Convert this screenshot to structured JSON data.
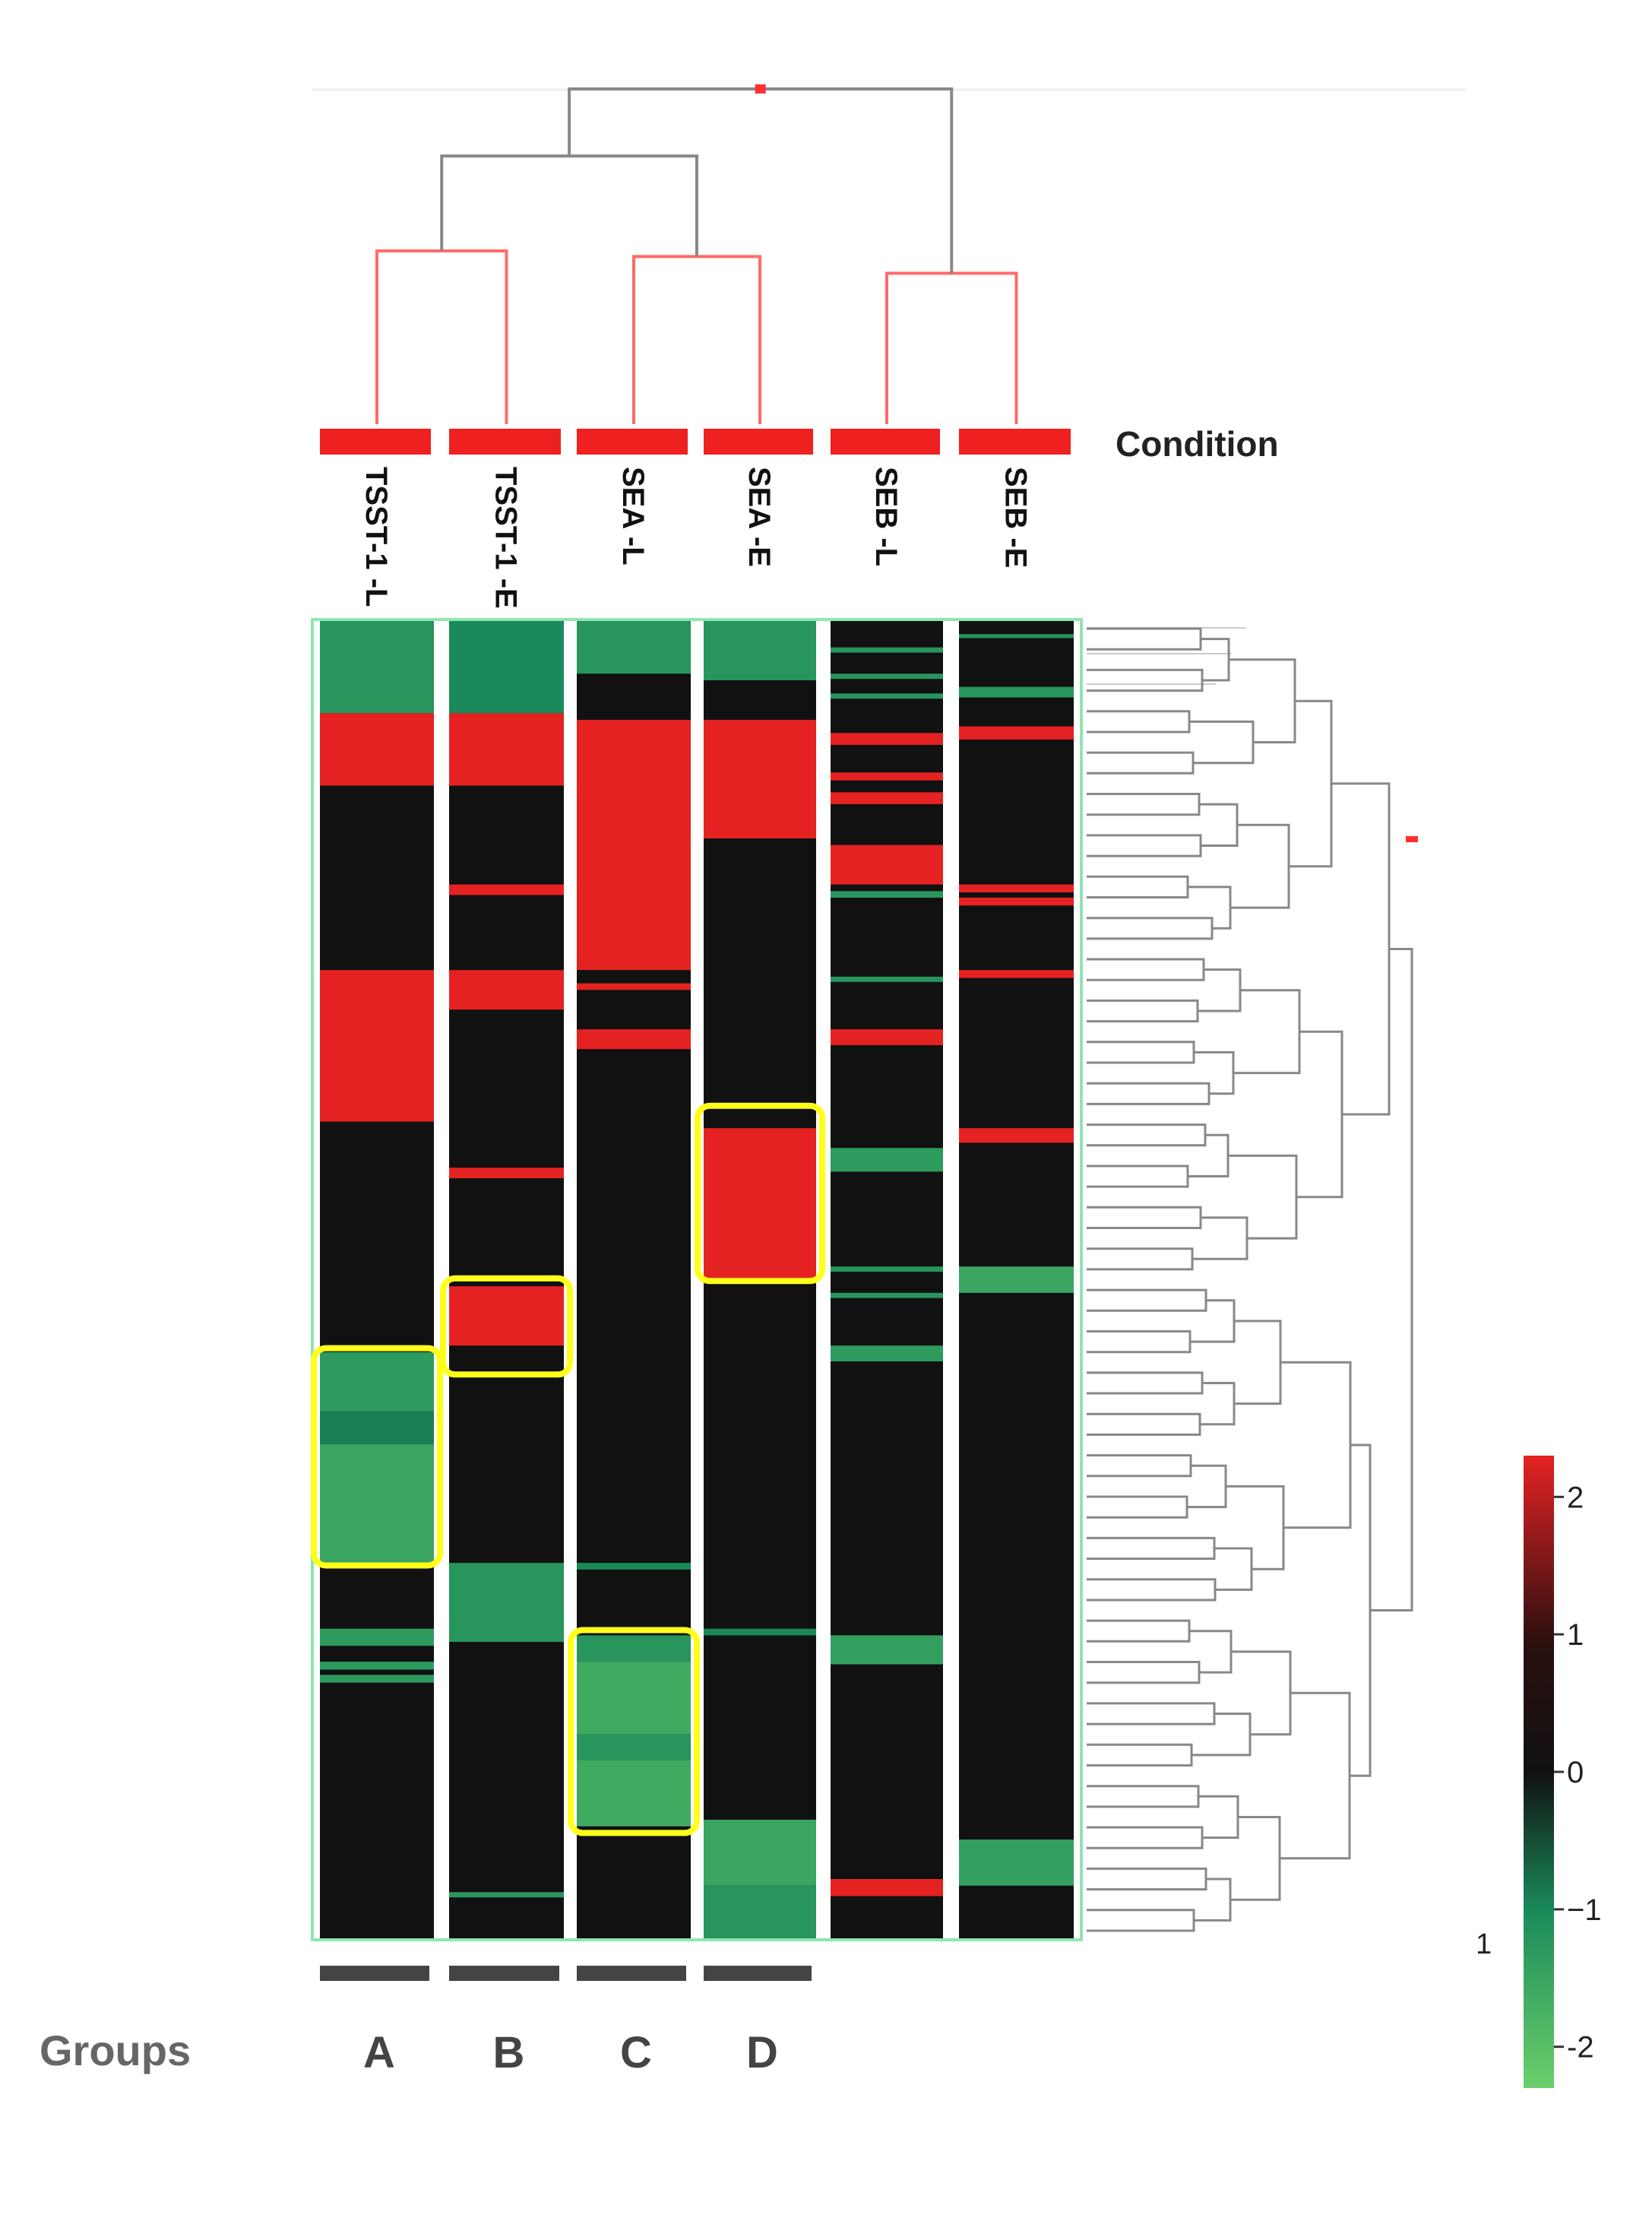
{
  "chart_data": {
    "type": "heatmap",
    "title": "",
    "condition_label": "Condition",
    "groups_label": "Groups",
    "columns": [
      {
        "name": "TSST-1 -L",
        "shown_label": "TSST-1 -L",
        "group": "A"
      },
      {
        "name": "TSST-1 -E",
        "shown_label": "TSST-1 -E",
        "group": "B"
      },
      {
        "name": "SEA -L",
        "shown_label": "SEA -L",
        "group": "C"
      },
      {
        "name": "SEA -E",
        "shown_label": "SEA -E",
        "group": "D"
      },
      {
        "name": "SEB -L",
        "shown_label": "SEB -L",
        "group": null
      },
      {
        "name": "SEB -E",
        "shown_label": "SEB -E",
        "group": null
      }
    ],
    "groups": [
      "A",
      "B",
      "C",
      "D"
    ],
    "row_domain": [
      0,
      100
    ],
    "value_range": [
      -2.3,
      2.3
    ],
    "colorbar": {
      "ticks": [
        2,
        1,
        0,
        -1,
        -2
      ],
      "tick_labels": [
        "2",
        "1",
        "0",
        "−1",
        "-2"
      ],
      "colors": {
        "high": "#e52222",
        "mid": "#111111",
        "low": "#6ccf6a",
        "mid_low": "#1a8a5a"
      },
      "stray_label": "1"
    },
    "column_dendrogram": [
      [
        0,
        1,
        1.55
      ],
      [
        2,
        3,
        1.5
      ],
      [
        4,
        5,
        1.35
      ],
      [
        6,
        7,
        2.4
      ],
      [
        9,
        8,
        3.0
      ]
    ],
    "highlight_boxes": [
      {
        "column": 0,
        "from": 55.2,
        "to": 71.7
      },
      {
        "column": 1,
        "from": 49.9,
        "to": 57.2
      },
      {
        "column": 2,
        "from": 76.6,
        "to": 92.0
      },
      {
        "column": 3,
        "from": 36.8,
        "to": 50.1
      }
    ],
    "values": [
      [
        {
          "from": 0,
          "to": 7,
          "v": -1.2
        },
        {
          "from": 7,
          "to": 12.5,
          "v": 2.2
        },
        {
          "from": 12.5,
          "to": 26.5,
          "v": 0
        },
        {
          "from": 26.5,
          "to": 38,
          "v": 2.2
        },
        {
          "from": 38,
          "to": 55.5,
          "v": 0
        },
        {
          "from": 55.5,
          "to": 60,
          "v": -1.3
        },
        {
          "from": 60,
          "to": 62.5,
          "v": -0.9
        },
        {
          "from": 62.5,
          "to": 71.5,
          "v": -1.5
        },
        {
          "from": 71.5,
          "to": 76.5,
          "v": 0
        },
        {
          "from": 76.5,
          "to": 77.8,
          "v": -1.3
        },
        {
          "from": 79,
          "to": 79.6,
          "v": -1.3
        },
        {
          "from": 80,
          "to": 80.6,
          "v": -1.3
        },
        {
          "from": 80.6,
          "to": 100,
          "v": 0
        }
      ],
      [
        {
          "from": 0,
          "to": 7,
          "v": -1.0
        },
        {
          "from": 7,
          "to": 12.5,
          "v": 2.2
        },
        {
          "from": 12.5,
          "to": 20,
          "v": 0
        },
        {
          "from": 20,
          "to": 20.8,
          "v": 2.2
        },
        {
          "from": 26.5,
          "to": 29.5,
          "v": 2.2
        },
        {
          "from": 41.5,
          "to": 42.3,
          "v": 2.2
        },
        {
          "from": 50.5,
          "to": 55,
          "v": 2.2
        },
        {
          "from": 71.5,
          "to": 77.5,
          "v": -1.2
        },
        {
          "from": 96.5,
          "to": 96.9,
          "v": -1.2
        }
      ],
      [
        {
          "from": 0,
          "to": 4,
          "v": -1.2
        },
        {
          "from": 7.5,
          "to": 26.5,
          "v": 2.2
        },
        {
          "from": 26.5,
          "to": 27,
          "v": 0
        },
        {
          "from": 27.5,
          "to": 28,
          "v": 2.2
        },
        {
          "from": 29,
          "to": 31,
          "v": 0
        },
        {
          "from": 31,
          "to": 32.5,
          "v": 2.2
        },
        {
          "from": 71.5,
          "to": 72,
          "v": -1.0
        },
        {
          "from": 77,
          "to": 79,
          "v": -1.2
        },
        {
          "from": 79,
          "to": 84.5,
          "v": -1.6
        },
        {
          "from": 84.5,
          "to": 86.5,
          "v": -1.2
        },
        {
          "from": 86.5,
          "to": 91.5,
          "v": -1.6
        }
      ],
      [
        {
          "from": 0,
          "to": 4.5,
          "v": -1.2
        },
        {
          "from": 7.5,
          "to": 16.5,
          "v": 2.2
        },
        {
          "from": 38.5,
          "to": 50,
          "v": 2.2
        },
        {
          "from": 76.5,
          "to": 77,
          "v": -1.0
        },
        {
          "from": 91,
          "to": 96,
          "v": -1.5
        },
        {
          "from": 96,
          "to": 100,
          "v": -1.2
        }
      ],
      [
        {
          "from": 2,
          "to": 2.4,
          "v": -1.2
        },
        {
          "from": 4,
          "to": 4.4,
          "v": -1.2
        },
        {
          "from": 5.5,
          "to": 5.9,
          "v": -1.2
        },
        {
          "from": 8.5,
          "to": 9.4,
          "v": 2.2
        },
        {
          "from": 11.5,
          "to": 12.1,
          "v": 2.2
        },
        {
          "from": 13,
          "to": 13.9,
          "v": 2.2
        },
        {
          "from": 17,
          "to": 20,
          "v": 2.2
        },
        {
          "from": 20.5,
          "to": 21,
          "v": -1.2
        },
        {
          "from": 27,
          "to": 27.4,
          "v": -1.2
        },
        {
          "from": 31,
          "to": 32.2,
          "v": 2.2
        },
        {
          "from": 40,
          "to": 41.8,
          "v": -1.3
        },
        {
          "from": 49,
          "to": 49.4,
          "v": -1.2
        },
        {
          "from": 51,
          "to": 51.4,
          "v": -1.2
        },
        {
          "from": 55,
          "to": 56.2,
          "v": -1.3
        },
        {
          "from": 77,
          "to": 79.2,
          "v": -1.4
        },
        {
          "from": 95.5,
          "to": 96.8,
          "v": 2.2
        }
      ],
      [
        {
          "from": 1,
          "to": 1.3,
          "v": -1.2
        },
        {
          "from": 5,
          "to": 5.8,
          "v": -1.2
        },
        {
          "from": 8,
          "to": 9,
          "v": 2.2
        },
        {
          "from": 20,
          "to": 20.6,
          "v": 2.2
        },
        {
          "from": 21,
          "to": 21.6,
          "v": 2.2
        },
        {
          "from": 26.5,
          "to": 27.1,
          "v": 2.2
        },
        {
          "from": 38.5,
          "to": 39.6,
          "v": 2.2
        },
        {
          "from": 49,
          "to": 51,
          "v": -1.5
        },
        {
          "from": 92.5,
          "to": 96,
          "v": -1.4
        }
      ]
    ]
  }
}
